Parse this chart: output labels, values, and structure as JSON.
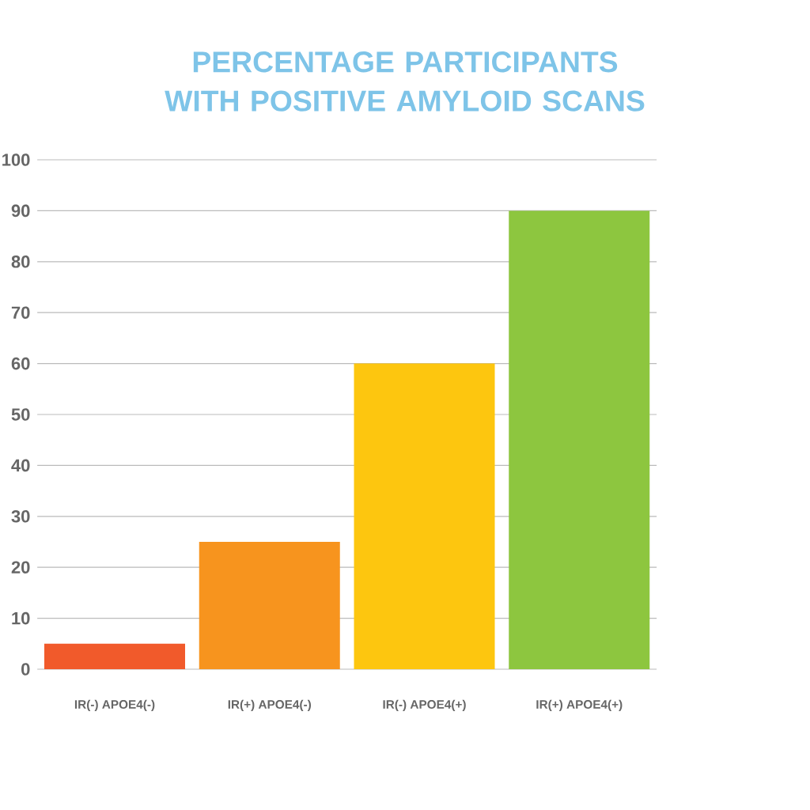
{
  "chart_data": {
    "type": "bar",
    "title": "PERCENTAGE PARTICIPANTS WITH POSITIVE AMYLOID SCANS",
    "categories": [
      "IR(-) APOE4(-)",
      "IR(+) APOE4(-)",
      "IR(-) APOE4(+)",
      "IR(+) APOE4(+)"
    ],
    "values": [
      5,
      25,
      60,
      90
    ],
    "colors": [
      "#f15a2b",
      "#f7941e",
      "#fdc60f",
      "#8dc63f"
    ],
    "ylim": [
      0,
      100
    ],
    "yticks": [
      0,
      10,
      20,
      30,
      40,
      50,
      60,
      70,
      80,
      90,
      100
    ],
    "grid": "y"
  }
}
